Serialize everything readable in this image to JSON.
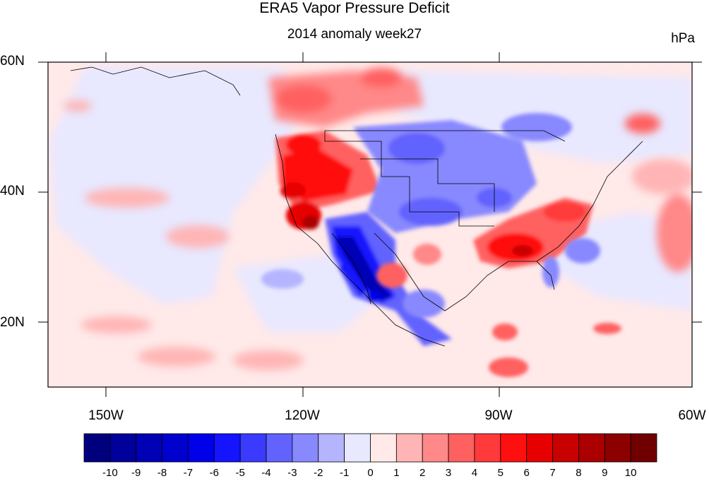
{
  "title": "ERA5 Vapor Pressure Deficit",
  "subtitle": "2014 anomaly week27",
  "units": "hPa",
  "lat_ticks": [
    "60N",
    "40N",
    "20N"
  ],
  "lon_ticks": [
    "150W",
    "120W",
    "90W",
    "60W"
  ],
  "colorbar": {
    "labels": [
      "-10",
      "-9",
      "-8",
      "-7",
      "-6",
      "-5",
      "-4",
      "-3",
      "-2",
      "-1",
      "0",
      "1",
      "2",
      "3",
      "4",
      "5",
      "6",
      "7",
      "8",
      "9",
      "10"
    ],
    "colors": [
      "#00007f",
      "#00009a",
      "#0000b4",
      "#0000cf",
      "#0000e9",
      "#1414ff",
      "#3b3bff",
      "#6262ff",
      "#8888ff",
      "#b5b5ff",
      "#e8e8ff",
      "#ffe9e9",
      "#ffb5b5",
      "#ff8888",
      "#ff6060",
      "#ff3a3a",
      "#ff1010",
      "#e60000",
      "#c80000",
      "#aa0000",
      "#8c0000",
      "#700000"
    ]
  },
  "map": {
    "lon_range": [
      -160,
      -60
    ],
    "lat_range": [
      10,
      60
    ],
    "projection": "cylindrical equidistant",
    "anomaly_regions": [
      {
        "name": "western-us-positive",
        "value": 6
      },
      {
        "name": "southwest-negative",
        "value": -8
      },
      {
        "name": "southeast-positive",
        "value": 5
      },
      {
        "name": "central-us-negative",
        "value": -3
      },
      {
        "name": "canada-positive",
        "value": 3
      },
      {
        "name": "northeast-canada-negative",
        "value": -2
      },
      {
        "name": "atlantic-positive",
        "value": 3
      },
      {
        "name": "pacific-weak-negative",
        "value": -1
      }
    ]
  }
}
